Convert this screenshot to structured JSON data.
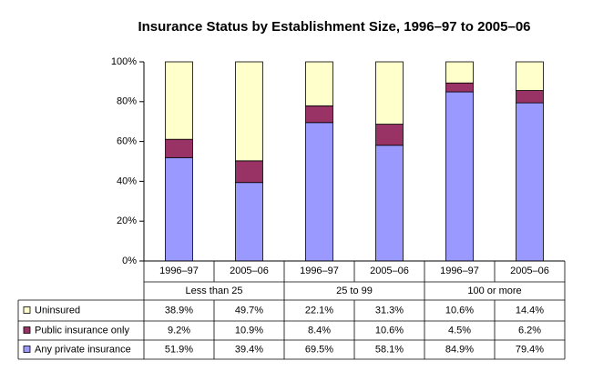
{
  "chart_data": {
    "type": "stacked_bar",
    "title": "Insurance Status by Establishment Size, 1996–97 to 2005–06",
    "categories": [
      "1996–97",
      "2005–06",
      "1996–97",
      "2005–06",
      "1996–97",
      "2005–06"
    ],
    "groups": [
      "Less than 25",
      "25 to 99",
      "100 or more"
    ],
    "series": [
      {
        "name": "Uninsured",
        "color": "#ffffcc",
        "values": [
          38.9,
          49.7,
          22.1,
          31.3,
          10.6,
          14.4
        ],
        "value_labels": [
          "38.9%",
          "49.7%",
          "22.1%",
          "31.3%",
          "10.6%",
          "14.4%"
        ]
      },
      {
        "name": "Public insurance only",
        "color": "#993366",
        "values": [
          9.2,
          10.9,
          8.4,
          10.6,
          4.5,
          6.2
        ],
        "value_labels": [
          "9.2%",
          "10.9%",
          "8.4%",
          "10.6%",
          "4.5%",
          "6.2%"
        ]
      },
      {
        "name": "Any private insurance",
        "color": "#9999ff",
        "values": [
          51.9,
          39.4,
          69.5,
          58.1,
          84.9,
          79.4
        ],
        "value_labels": [
          "51.9%",
          "39.4%",
          "69.5%",
          "58.1%",
          "84.9%",
          "79.4%"
        ]
      }
    ],
    "ylim": [
      0,
      100
    ],
    "yticks": [
      {
        "value": 0,
        "label": "0%"
      },
      {
        "value": 20,
        "label": "20%"
      },
      {
        "value": 40,
        "label": "40%"
      },
      {
        "value": 60,
        "label": "60%"
      },
      {
        "value": 80,
        "label": "80%"
      },
      {
        "value": 100,
        "label": "100%"
      }
    ]
  }
}
